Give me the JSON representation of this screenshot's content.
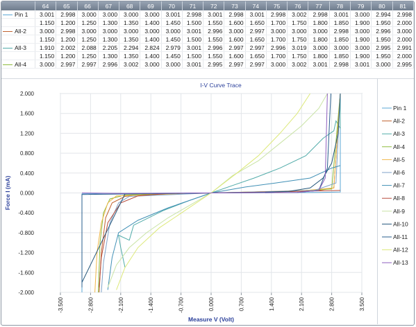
{
  "table": {
    "columns": [
      "64",
      "65",
      "66",
      "67",
      "68",
      "69",
      "70",
      "71",
      "72",
      "73",
      "74",
      "75",
      "76",
      "77",
      "78",
      "79",
      "80",
      "81"
    ],
    "rows": [
      {
        "label": "Pin 1",
        "color": "#5aa7d6",
        "values": [
          "3.001",
          "2.998",
          "3.000",
          "3.000",
          "3.000",
          "3.000",
          "3.001",
          "2.998",
          "3.001",
          "2.998",
          "3.001",
          "2.998",
          "3.002",
          "2.998",
          "3.001",
          "3.000",
          "2.994",
          "2.998"
        ]
      },
      {
        "label": "",
        "color": "",
        "values": [
          "1.150",
          "1.200",
          "1.250",
          "1.300",
          "1.350",
          "1.400",
          "1.450",
          "1.500",
          "1.550",
          "1.600",
          "1.650",
          "1.700",
          "1.750",
          "1.800",
          "1.850",
          "1.900",
          "1.950",
          "2.000"
        ]
      },
      {
        "label": "All-2",
        "color": "#c0622f",
        "values": [
          "3.000",
          "2.998",
          "3.000",
          "3.000",
          "3.000",
          "3.000",
          "3.000",
          "3.001",
          "2.996",
          "3.000",
          "2.997",
          "3.000",
          "3.000",
          "3.000",
          "2.998",
          "3.000",
          "2.996",
          "3.000"
        ]
      },
      {
        "label": "",
        "color": "",
        "values": [
          "1.150",
          "1.200",
          "1.250",
          "1.300",
          "1.350",
          "1.400",
          "1.450",
          "1.500",
          "1.550",
          "1.600",
          "1.650",
          "1.700",
          "1.750",
          "1.800",
          "1.850",
          "1.900",
          "1.950",
          "2.000"
        ]
      },
      {
        "label": "All-3",
        "color": "#4faaa8",
        "values": [
          "1.910",
          "2.002",
          "2.088",
          "2.205",
          "2.294",
          "2.824",
          "2.979",
          "3.001",
          "2.996",
          "2.997",
          "2.997",
          "2.996",
          "3.019",
          "3.000",
          "3.000",
          "3.000",
          "2.995",
          "2.991"
        ]
      },
      {
        "label": "",
        "color": "",
        "values": [
          "1.150",
          "1.200",
          "1.250",
          "1.300",
          "1.350",
          "1.400",
          "1.450",
          "1.500",
          "1.550",
          "1.600",
          "1.650",
          "1.700",
          "1.750",
          "1.800",
          "1.850",
          "1.900",
          "1.950",
          "2.000"
        ]
      },
      {
        "label": "All-4",
        "color": "#8dbb3c",
        "values": [
          "3.000",
          "2.997",
          "2.997",
          "2.996",
          "3.002",
          "3.000",
          "3.000",
          "3.001",
          "2.995",
          "2.997",
          "2.997",
          "3.000",
          "3.002",
          "3.001",
          "2.998",
          "3.001",
          "3.000",
          "2.995"
        ]
      }
    ]
  },
  "chart_data": {
    "type": "line",
    "title": "I-V Curve Trace",
    "xlabel": "Measure V (Volt)",
    "ylabel": "Force I (mA)",
    "xlim": [
      -3.5,
      3.5
    ],
    "ylim": [
      -2.0,
      2.0
    ],
    "x_ticks": [
      "-3.500",
      "-2.800",
      "-2.100",
      "-1.400",
      "-0.700",
      "0.000",
      "0.700",
      "1.400",
      "2.100",
      "2.800",
      "3.500"
    ],
    "y_ticks": [
      "2.000",
      "1.600",
      "1.200",
      "0.800",
      "0.400",
      "0.000",
      "-0.400",
      "-0.800",
      "-1.200",
      "-1.600",
      "-2.000"
    ],
    "grid": true,
    "legend_position": "right",
    "series": [
      {
        "name": "Pin 1",
        "color": "#5aa7d6",
        "points": [
          [
            -3.0,
            -2.0
          ],
          [
            -3.0,
            -0.02
          ],
          [
            -2.5,
            -0.01
          ],
          [
            0,
            0
          ],
          [
            2.5,
            0.01
          ],
          [
            3.0,
            0.02
          ],
          [
            3.0,
            2.0
          ]
        ]
      },
      {
        "name": "All-2",
        "color": "#c0622f",
        "points": [
          [
            -2.6,
            -2.0
          ],
          [
            -2.55,
            -1.2
          ],
          [
            -2.45,
            -0.5
          ],
          [
            -2.3,
            -0.2
          ],
          [
            -2.0,
            -0.07
          ],
          [
            -1.5,
            -0.02
          ],
          [
            0,
            0
          ],
          [
            1.5,
            0.02
          ],
          [
            2.5,
            0.05
          ],
          [
            2.85,
            0.1
          ],
          [
            3.0,
            2.0
          ]
        ]
      },
      {
        "name": "All-3",
        "color": "#4faaa8",
        "points": [
          [
            -2.0,
            -1.5
          ],
          [
            -2.1,
            -1.1
          ],
          [
            -2.15,
            -0.85
          ],
          [
            -1.9,
            -0.95
          ],
          [
            -1.8,
            -0.65
          ],
          [
            -1.1,
            -0.35
          ],
          [
            -0.5,
            -0.15
          ],
          [
            0,
            0
          ],
          [
            0.5,
            0.15
          ],
          [
            1.0,
            0.3
          ],
          [
            1.6,
            0.5
          ],
          [
            2.2,
            0.75
          ],
          [
            2.6,
            1.1
          ],
          [
            2.85,
            1.25
          ],
          [
            2.9,
            1.45
          ],
          [
            3.0,
            1.3
          ],
          [
            3.0,
            2.0
          ]
        ]
      },
      {
        "name": "All-4",
        "color": "#8dbb3c",
        "points": [
          [
            -2.62,
            -2.0
          ],
          [
            -2.58,
            -1.0
          ],
          [
            -2.5,
            -0.4
          ],
          [
            -2.35,
            -0.12
          ],
          [
            -2.0,
            -0.04
          ],
          [
            0,
            0
          ],
          [
            2.0,
            0.04
          ],
          [
            2.8,
            0.08
          ],
          [
            3.0,
            2.0
          ]
        ]
      },
      {
        "name": "All-5",
        "color": "#f0b74a",
        "points": [
          [
            -2.7,
            -2.0
          ],
          [
            -2.65,
            -1.2
          ],
          [
            -2.55,
            -0.6
          ],
          [
            -2.4,
            -0.2
          ],
          [
            -2.2,
            -0.06
          ],
          [
            0,
            0
          ],
          [
            2.2,
            0.05
          ],
          [
            2.85,
            0.1
          ],
          [
            3.0,
            2.0
          ]
        ]
      },
      {
        "name": "All-6",
        "color": "#7fa2c8",
        "points": [
          [
            -2.55,
            -2.0
          ],
          [
            -2.5,
            -1.4
          ],
          [
            -2.35,
            -0.6
          ],
          [
            -2.15,
            -0.2
          ],
          [
            -1.9,
            -0.07
          ],
          [
            0,
            0
          ],
          [
            2.4,
            0.05
          ],
          [
            2.9,
            0.2
          ],
          [
            3.0,
            2.0
          ]
        ]
      },
      {
        "name": "All-7",
        "color": "#3f8fb5",
        "points": [
          [
            -2.4,
            -1.95
          ],
          [
            -2.3,
            -1.3
          ],
          [
            -2.15,
            -0.8
          ],
          [
            -1.7,
            -0.55
          ],
          [
            -1.0,
            -0.3
          ],
          [
            -0.4,
            -0.12
          ],
          [
            0,
            0
          ],
          [
            0.8,
            0.12
          ],
          [
            1.5,
            0.2
          ],
          [
            2.3,
            0.3
          ],
          [
            2.8,
            0.5
          ],
          [
            3.0,
            0.55
          ]
        ]
      },
      {
        "name": "All-8",
        "color": "#b64a3a",
        "points": [
          [
            -2.6,
            -1.9
          ],
          [
            -2.55,
            -1.3
          ],
          [
            -2.4,
            -0.6
          ],
          [
            -2.1,
            -0.2
          ],
          [
            -1.7,
            -0.06
          ],
          [
            -1.0,
            -0.01
          ],
          [
            0,
            0
          ],
          [
            2.0,
            0.03
          ],
          [
            3.0,
            0.05
          ]
        ]
      },
      {
        "name": "All-9",
        "color": "#c9e3a5",
        "points": [
          [
            -2.4,
            -1.9
          ],
          [
            -2.2,
            -1.45
          ],
          [
            -1.9,
            -1.1
          ],
          [
            -1.5,
            -0.8
          ],
          [
            -1.0,
            -0.5
          ],
          [
            -0.5,
            -0.25
          ],
          [
            0,
            0
          ],
          [
            0.5,
            0.35
          ],
          [
            1.1,
            0.65
          ],
          [
            1.6,
            1.0
          ],
          [
            2.1,
            1.35
          ],
          [
            2.5,
            1.7
          ],
          [
            2.7,
            2.0
          ]
        ]
      },
      {
        "name": "All-10",
        "color": "#23567a",
        "points": [
          [
            -3.0,
            -1.8
          ],
          [
            -2.0,
            -0.02
          ],
          [
            0,
            0
          ],
          [
            1.0,
            0.01
          ],
          [
            1.8,
            0.03
          ],
          [
            2.3,
            0.1
          ],
          [
            2.6,
            0.3
          ],
          [
            2.8,
            0.6
          ],
          [
            2.95,
            1.2
          ],
          [
            3.0,
            2.0
          ]
        ]
      },
      {
        "name": "All-11",
        "color": "#275d8c",
        "points": [
          [
            -3.0,
            -1.9
          ],
          [
            -3.0,
            -0.03
          ],
          [
            0,
            0
          ],
          [
            2.0,
            0.01
          ],
          [
            2.5,
            0.05
          ],
          [
            2.7,
            0.5
          ],
          [
            2.78,
            2.0
          ]
        ]
      },
      {
        "name": "All-12",
        "color": "#dde97a",
        "points": [
          [
            -2.2,
            -1.95
          ],
          [
            -2.0,
            -1.5
          ],
          [
            -1.7,
            -1.1
          ],
          [
            -1.2,
            -0.7
          ],
          [
            -0.6,
            -0.35
          ],
          [
            0,
            0
          ],
          [
            0.6,
            0.4
          ],
          [
            1.1,
            0.75
          ],
          [
            1.6,
            1.2
          ],
          [
            2.0,
            1.6
          ],
          [
            2.3,
            2.0
          ]
        ]
      },
      {
        "name": "All-13",
        "color": "#8e5fbf",
        "points": [
          [
            -3.0,
            0.0
          ],
          [
            -2.0,
            -0.01
          ],
          [
            0,
            0
          ],
          [
            2.0,
            0.01
          ],
          [
            2.5,
            0.05
          ],
          [
            2.65,
            0.3
          ],
          [
            2.7,
            2.0
          ]
        ]
      }
    ]
  }
}
